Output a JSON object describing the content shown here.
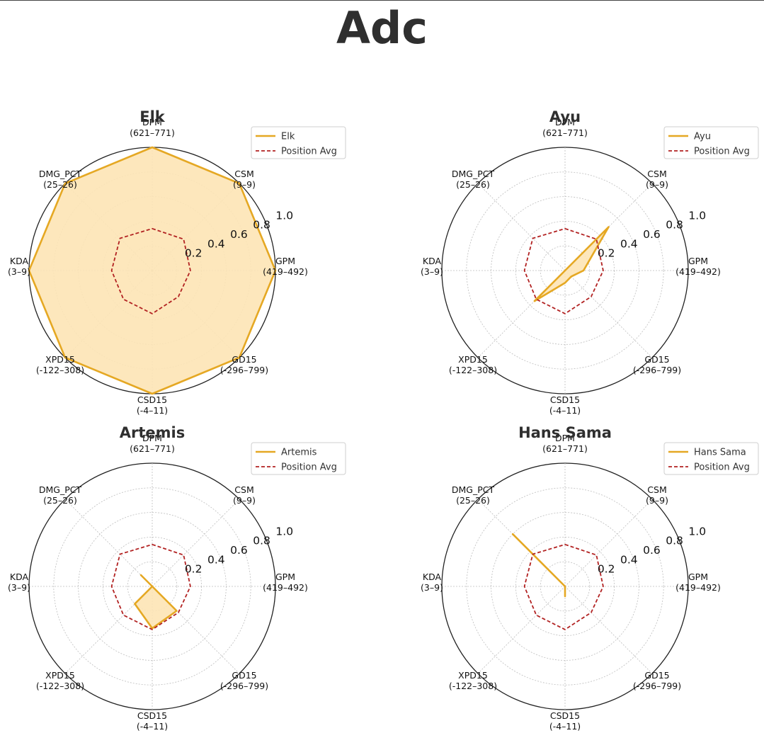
{
  "page_title": "Adc",
  "colors": {
    "player_line": "#e5a823",
    "player_fill": "#fde4b5",
    "avg_line": "#b22222",
    "grid": "#bdbdbd",
    "outer_ring": "#222222"
  },
  "chart_data": [
    {
      "type": "radar",
      "title": "Elk",
      "axes": [
        {
          "name": "DPM",
          "range": "(621–771)"
        },
        {
          "name": "CSM",
          "range": "(9–9)"
        },
        {
          "name": "GPM",
          "range": "(419–492)"
        },
        {
          "name": "GD15",
          "range": "(-296–799)"
        },
        {
          "name": "CSD15",
          "range": "(-4–11)"
        },
        {
          "name": "XPD15",
          "range": "(-122–308)"
        },
        {
          "name": "KDA",
          "range": "(3–9)"
        },
        {
          "name": "DMG_PCT",
          "range": "(25–26)"
        }
      ],
      "radial_ticks": [
        "0.2",
        "0.4",
        "0.6",
        "0.8",
        "1.0"
      ],
      "rlim": [
        0,
        1.0
      ],
      "grid": true,
      "legend_position": "top-right",
      "series": [
        {
          "name": "Elk",
          "values": [
            1.0,
            1.0,
            1.0,
            1.0,
            1.0,
            1.0,
            1.0,
            1.0
          ],
          "filled": true
        },
        {
          "name": "Position Avg",
          "values": [
            0.34,
            0.36,
            0.31,
            0.3,
            0.35,
            0.33,
            0.33,
            0.37
          ],
          "filled": false
        }
      ]
    },
    {
      "type": "radar",
      "title": "Ayu",
      "axes": [
        {
          "name": "DPM",
          "range": "(621–771)"
        },
        {
          "name": "CSM",
          "range": "(9–9)"
        },
        {
          "name": "GPM",
          "range": "(419–492)"
        },
        {
          "name": "GD15",
          "range": "(-296–799)"
        },
        {
          "name": "CSD15",
          "range": "(-4–11)"
        },
        {
          "name": "XPD15",
          "range": "(-122–308)"
        },
        {
          "name": "KDA",
          "range": "(3–9)"
        },
        {
          "name": "DMG_PCT",
          "range": "(25–26)"
        }
      ],
      "radial_ticks": [
        "0.2",
        "0.4",
        "0.6",
        "0.8",
        "1.0"
      ],
      "rlim": [
        0,
        1.0
      ],
      "grid": true,
      "legend_position": "top-right",
      "series": [
        {
          "name": "Ayu",
          "values": [
            0.0,
            0.5,
            0.15,
            0.07,
            0.1,
            0.35,
            0.0,
            0.0
          ],
          "filled": true
        },
        {
          "name": "Position Avg",
          "values": [
            0.34,
            0.36,
            0.31,
            0.3,
            0.35,
            0.33,
            0.33,
            0.37
          ],
          "filled": false
        }
      ]
    },
    {
      "type": "radar",
      "title": "Artemis",
      "axes": [
        {
          "name": "DPM",
          "range": "(621–771)"
        },
        {
          "name": "CSM",
          "range": "(9–9)"
        },
        {
          "name": "GPM",
          "range": "(419–492)"
        },
        {
          "name": "GD15",
          "range": "(-296–799)"
        },
        {
          "name": "CSD15",
          "range": "(-4–11)"
        },
        {
          "name": "XPD15",
          "range": "(-122–308)"
        },
        {
          "name": "KDA",
          "range": "(3–9)"
        },
        {
          "name": "DMG_PCT",
          "range": "(25–26)"
        }
      ],
      "radial_ticks": [
        "0.2",
        "0.4",
        "0.6",
        "0.8",
        "1.0"
      ],
      "rlim": [
        0,
        1.0
      ],
      "grid": true,
      "legend_position": "top-right",
      "series": [
        {
          "name": "Artemis",
          "values": [
            0.0,
            0.0,
            0.0,
            0.28,
            0.34,
            0.2,
            0.0,
            0.13
          ],
          "filled": true
        },
        {
          "name": "Position Avg",
          "values": [
            0.34,
            0.36,
            0.31,
            0.3,
            0.35,
            0.33,
            0.33,
            0.37
          ],
          "filled": false
        }
      ]
    },
    {
      "type": "radar",
      "title": "Hans Sama",
      "axes": [
        {
          "name": "DPM",
          "range": "(621–771)"
        },
        {
          "name": "CSM",
          "range": "(9–9)"
        },
        {
          "name": "GPM",
          "range": "(419–492)"
        },
        {
          "name": "GD15",
          "range": "(-296–799)"
        },
        {
          "name": "CSD15",
          "range": "(-4–11)"
        },
        {
          "name": "XPD15",
          "range": "(-122–308)"
        },
        {
          "name": "KDA",
          "range": "(3–9)"
        },
        {
          "name": "DMG_PCT",
          "range": "(25–26)"
        }
      ],
      "radial_ticks": [
        "0.2",
        "0.4",
        "0.6",
        "0.8",
        "1.0"
      ],
      "rlim": [
        0,
        1.0
      ],
      "grid": true,
      "legend_position": "top-right",
      "series": [
        {
          "name": "Hans Sama",
          "values": [
            0.0,
            0.0,
            0.0,
            0.0,
            0.08,
            0.0,
            0.0,
            0.6
          ],
          "filled": true
        },
        {
          "name": "Position Avg",
          "values": [
            0.34,
            0.36,
            0.31,
            0.3,
            0.35,
            0.33,
            0.33,
            0.37
          ],
          "filled": false
        }
      ]
    }
  ]
}
